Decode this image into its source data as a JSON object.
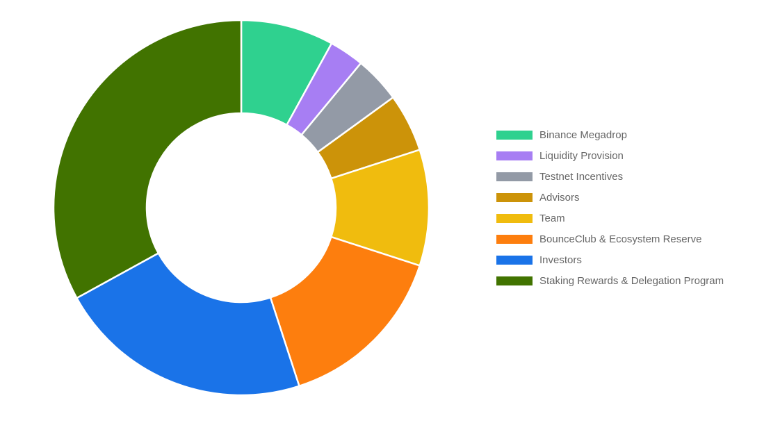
{
  "chart_data": {
    "type": "pie",
    "variant": "doughnut",
    "title": "",
    "labels": [
      "Binance Megadrop",
      "Liquidity Provision",
      "Testnet Incentives",
      "Advisors",
      "Team",
      "BounceClub & Ecosystem Reserve",
      "Investors",
      "Staking Rewards & Delegation Program"
    ],
    "values": [
      8,
      3,
      4,
      5,
      10,
      15,
      22,
      33
    ],
    "colors": [
      "#2fd18f",
      "#a77ef3",
      "#939aa6",
      "#cc9309",
      "#f0bc0e",
      "#fd7e0e",
      "#1a73e8",
      "#417300"
    ],
    "legend_position": "right"
  }
}
